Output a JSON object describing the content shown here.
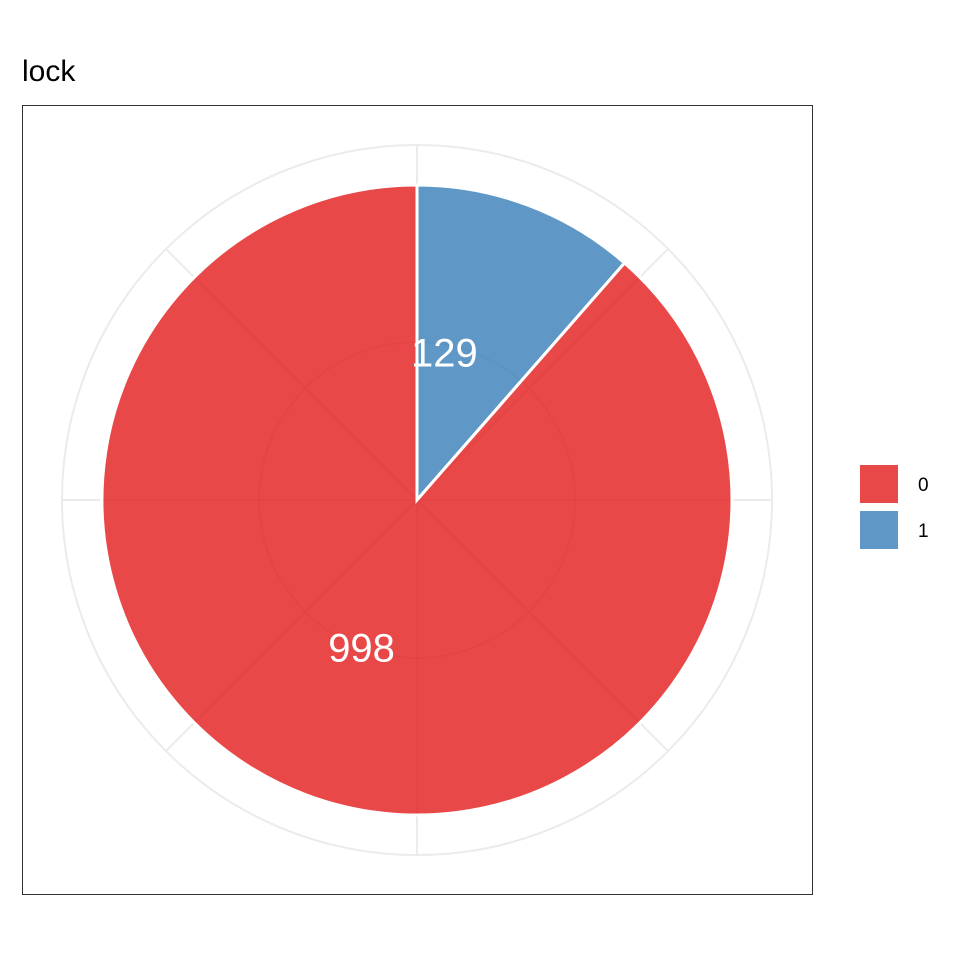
{
  "chart_data": {
    "type": "pie",
    "title": "lock",
    "categories": [
      "0",
      "1"
    ],
    "values": [
      998,
      129
    ],
    "colors": [
      "#E41A1C",
      "#377EB8"
    ],
    "slice_alpha": 0.8,
    "legend": {
      "placement": "right",
      "entries": [
        "0",
        "1"
      ]
    },
    "grid": true,
    "start_angle": "top",
    "direction": "clockwise",
    "order": [
      "1",
      "0"
    ]
  }
}
